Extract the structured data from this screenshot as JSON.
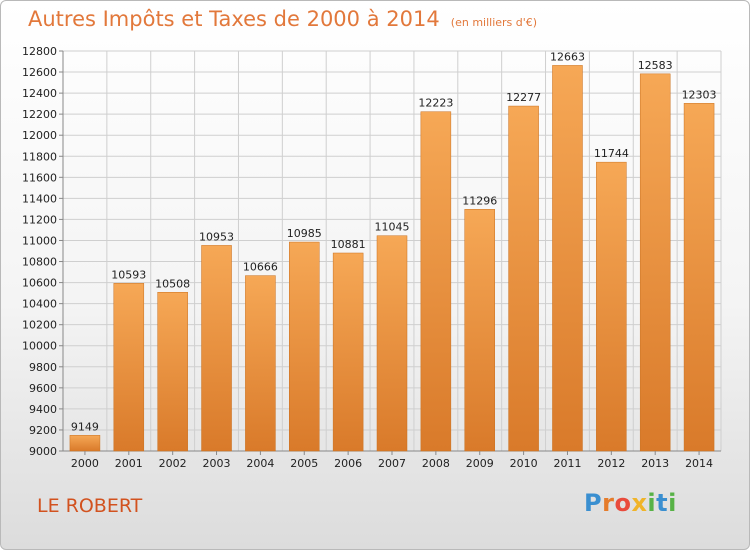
{
  "title": "Autres Impôts et Taxes de 2000 à 2014",
  "unit_note": "(en milliers d'€)",
  "commune": "LE ROBERT",
  "logo_text": "Proxiti",
  "colors": {
    "bar": "#f4a04f",
    "bar_dark": "#d97a2a",
    "title": "#e2783b",
    "commune": "#d2521f"
  },
  "chart_data": {
    "type": "bar",
    "title": "Autres Impôts et Taxes de 2000 à 2014",
    "ylabel": "",
    "xlabel": "",
    "categories": [
      "2000",
      "2001",
      "2002",
      "2003",
      "2004",
      "2005",
      "2006",
      "2007",
      "2008",
      "2009",
      "2010",
      "2011",
      "2012",
      "2013",
      "2014"
    ],
    "values": [
      9149,
      10593,
      10508,
      10953,
      10666,
      10985,
      10881,
      11045,
      12223,
      11296,
      12277,
      12663,
      11744,
      12583,
      12303
    ],
    "ylim": [
      9000,
      12800
    ],
    "yticks": [
      9000,
      9200,
      9400,
      9600,
      9800,
      10000,
      10200,
      10400,
      10600,
      10800,
      11000,
      11200,
      11400,
      11600,
      11800,
      12000,
      12200,
      12400,
      12600,
      12800
    ],
    "grid": true,
    "legend": "none"
  }
}
